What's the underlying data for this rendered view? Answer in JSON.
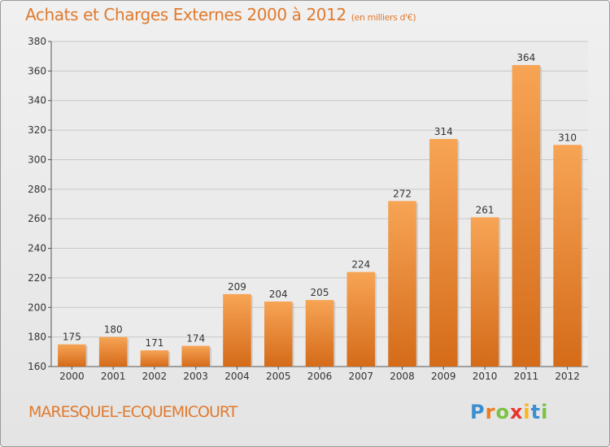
{
  "title": "Achats et Charges Externes 2000 à 2012",
  "unit": "(en milliers d'€)",
  "commune": "MARESQUEL-ECQUEMICOURT",
  "logo": {
    "letters": [
      "P",
      "r",
      "o",
      "x",
      "i",
      "t",
      "i"
    ],
    "colors": [
      "#3a8fd0",
      "#f07b1e",
      "#7cc242",
      "#e8342b",
      "#f6b81b",
      "#3a8fd0",
      "#7cc242"
    ]
  },
  "colors": {
    "accent": "#e07a2e",
    "bar_light": "#f7a455",
    "bar_dark": "#d46b19"
  },
  "chart_data": {
    "type": "bar",
    "categories": [
      "2000",
      "2001",
      "2002",
      "2003",
      "2004",
      "2005",
      "2006",
      "2007",
      "2008",
      "2009",
      "2010",
      "2011",
      "2012"
    ],
    "values": [
      175,
      180,
      171,
      174,
      209,
      204,
      205,
      224,
      272,
      314,
      261,
      364,
      310
    ],
    "ylim": [
      160,
      380
    ],
    "yticks": [
      160,
      180,
      200,
      220,
      240,
      260,
      280,
      300,
      320,
      340,
      360,
      380
    ],
    "grid": true,
    "xlabel": "",
    "ylabel": ""
  }
}
